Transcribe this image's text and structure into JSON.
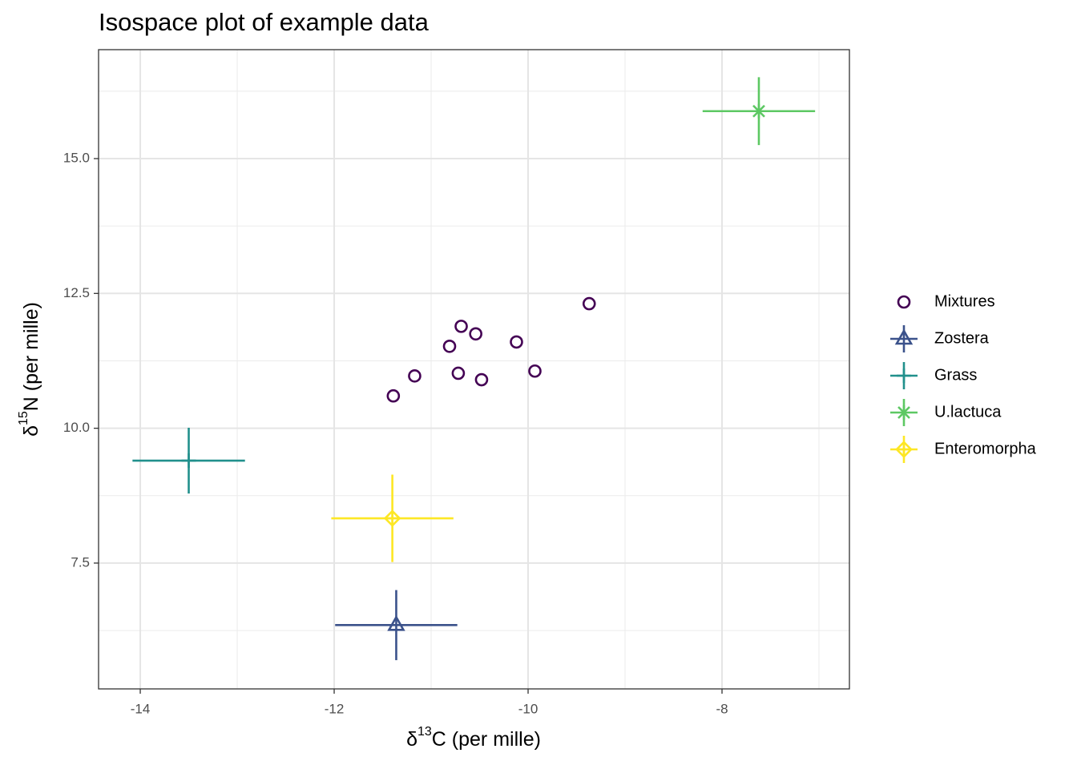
{
  "chart_data": {
    "type": "scatter",
    "title": "Isospace plot of example data",
    "xlabel": {
      "symbol": "δ",
      "sup": "13",
      "text": "C (per mille)"
    },
    "ylabel": {
      "symbol": "δ",
      "sup": "15",
      "text": "N (per mille)"
    },
    "xlim": [
      -14.43,
      -6.686
    ],
    "ylim": [
      5.167,
      17.02
    ],
    "xticks": [
      -14,
      -12,
      -10,
      -8
    ],
    "yticks": [
      7.5,
      {
        "value": 10,
        "label": "10.0"
      },
      12.5,
      {
        "value": 15,
        "label": "15.0"
      }
    ],
    "xminorticks": [
      -13,
      -11,
      -9,
      -7
    ],
    "yminorticks": [
      6.25,
      8.75,
      11.25,
      13.75,
      16.25
    ],
    "grid": true,
    "legend": "right",
    "series": [
      {
        "name": "Mixtures",
        "color": "#440154",
        "shape": "circle",
        "x": [
          -11.39,
          -11.17,
          -10.81,
          -10.69,
          -10.72,
          -10.54,
          -10.48,
          -10.12,
          -9.93,
          -9.37
        ],
        "y": [
          10.6,
          10.97,
          11.52,
          11.89,
          11.02,
          11.75,
          10.9,
          11.6,
          11.06,
          12.31
        ]
      },
      {
        "name": "Zostera",
        "color": "#3B528B",
        "shape": "triangle",
        "x": [
          -11.36
        ],
        "y": [
          6.35
        ],
        "xerr": [
          0.63
        ],
        "yerr": [
          0.65
        ]
      },
      {
        "name": "Grass",
        "color": "#21908C",
        "shape": "plus",
        "x": [
          -13.5
        ],
        "y": [
          9.4
        ],
        "xerr": [
          0.58
        ],
        "yerr": [
          0.61
        ]
      },
      {
        "name": "U.lactuca",
        "color": "#5DC863",
        "shape": "asterisk",
        "x": [
          -7.62
        ],
        "y": [
          15.88
        ],
        "xerr": [
          0.58
        ],
        "yerr": [
          0.63
        ]
      },
      {
        "name": "Enteromorpha",
        "color": "#FDE725",
        "shape": "diamondplus",
        "x": [
          -11.4
        ],
        "y": [
          8.33
        ],
        "xerr": [
          0.63
        ],
        "yerr": [
          0.81
        ]
      }
    ]
  }
}
